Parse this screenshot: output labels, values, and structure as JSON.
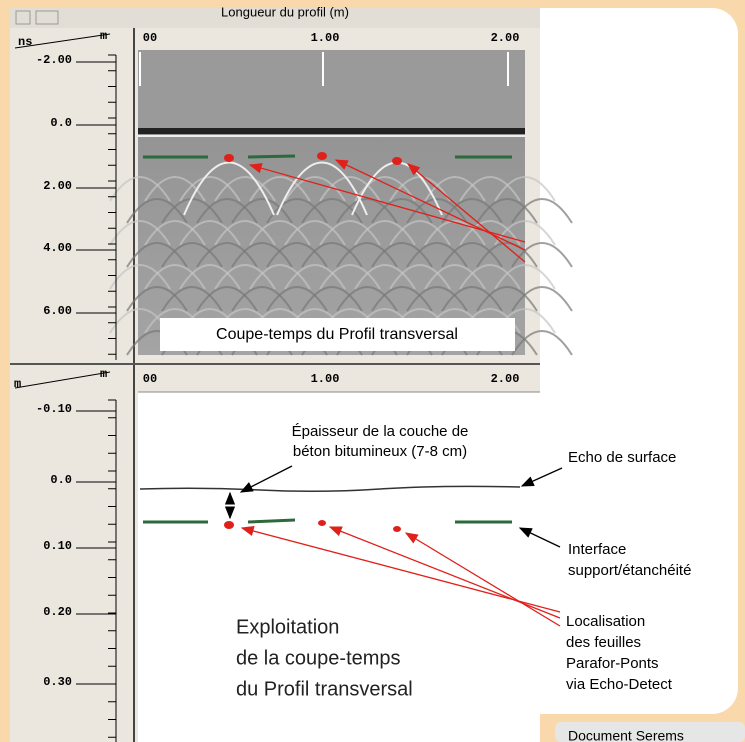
{
  "top_panel": {
    "x_axis_title": "Longueur du profil (m)",
    "corner_left": "ns",
    "corner_right": "m",
    "x_ticks": [
      "00",
      "1.00",
      "2.00"
    ],
    "y_ticks": [
      "-2.00",
      "0.0",
      "2.00",
      "4.00",
      "6.00"
    ],
    "caption": "Coupe-temps du Profil transversal"
  },
  "bottom_panel": {
    "corner_left": "m",
    "corner_right": "m",
    "x_ticks": [
      "00",
      "1.00",
      "2.00"
    ],
    "y_ticks": [
      "-0.10",
      "0.0",
      "0.10",
      "0.20",
      "0.30"
    ]
  },
  "annotations": {
    "thickness": [
      "Épaisseur de la couche de",
      "béton bitumineux (7-8 cm)"
    ],
    "surface_echo": "Echo de surface",
    "interface": [
      "Interface",
      "support/étanchéité"
    ],
    "localisation": [
      "Localisation",
      "des feuilles",
      "Parafor-Ponts",
      "via Echo-Detect"
    ],
    "exploitation": [
      "Exploitation",
      "de la coupe-temps",
      "du Profil transversal"
    ]
  },
  "credit": "Document Serems"
}
